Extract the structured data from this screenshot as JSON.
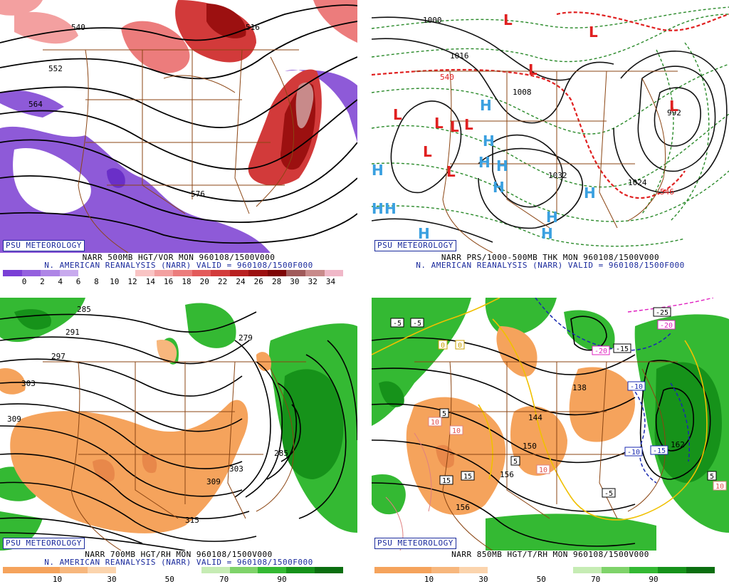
{
  "credit": "PSU METEOROLOGY",
  "panels": {
    "tl": {
      "title": "NARR 500MB HGT/VOR MON 960108/1500V000",
      "subtitle": "N. AMERICAN REANALYSIS (NARR) VALID = 960108/1500F000",
      "colorbar_labels": [
        "0",
        "2",
        "4",
        "6",
        "8",
        "10",
        "12",
        "14",
        "16",
        "18",
        "20",
        "22",
        "24",
        "26",
        "28",
        "30",
        "32",
        "34"
      ],
      "contour_labels": [
        "540",
        "552",
        "564",
        "576",
        "516"
      ],
      "colorbar_colors": [
        "#7a3fd6",
        "#9460de",
        "#ae85e6",
        "#c8aaee",
        "#ffffff",
        "#ffffff",
        "#ffffff",
        "#f9c4c4",
        "#f3a0a0",
        "#ec7c7c",
        "#e35a5a",
        "#d23a3a",
        "#b82020",
        "#9c1010",
        "#7e0606",
        "#a05a5a",
        "#c88a8a",
        "#f0b8c8"
      ]
    },
    "tr": {
      "title": "NARR PRS/1000-500MB THK MON 960108/1500V000",
      "subtitle": "N. AMERICAN REANALYSIS (NARR) VALID = 960108/1500F000",
      "contour_labels": [
        "1000",
        "1008",
        "1016",
        "1024",
        "1032",
        "992",
        "540",
        "546"
      ],
      "low_symbol": "L",
      "high_symbol": "H"
    },
    "bl": {
      "title": "NARR 700MB HGT/RH MON 960108/1500V000",
      "subtitle": "N. AMERICAN REANALYSIS (NARR) VALID = 960108/1500F000",
      "colorbar_labels": [
        "10",
        "30",
        "50",
        "70",
        "90"
      ],
      "contour_labels": [
        "285",
        "291",
        "297",
        "303",
        "309",
        "315",
        "279"
      ],
      "colorbar_colors": [
        "#f5a35c",
        "#f5a35c",
        "#f7b77d",
        "#fbd4ad",
        "#ffffff",
        "#ffffff",
        "#ffffff",
        "#c6ecb4",
        "#7fd36a",
        "#34b933",
        "#16921a",
        "#0b6e10"
      ]
    },
    "br": {
      "title": "NARR 850MB HGT/T/RH MON 960108/1500V000",
      "colorbar_labels": [
        "10",
        "30",
        "50",
        "70",
        "90"
      ],
      "temp_labels": [
        "-5",
        "-5",
        "-5",
        "5",
        "0",
        "0",
        "10",
        "10",
        "10",
        "15",
        "15",
        "-10",
        "-15",
        "-15",
        "-10",
        "-20",
        "-20",
        "-25",
        "5",
        "10",
        "5"
      ],
      "contour_labels": [
        "138",
        "144",
        "150",
        "156",
        "162"
      ],
      "colorbar_colors": [
        "#f5a35c",
        "#f5a35c",
        "#f7b77d",
        "#fbd4ad",
        "#ffffff",
        "#ffffff",
        "#ffffff",
        "#c6ecb4",
        "#7fd36a",
        "#34b933",
        "#16921a",
        "#0b6e10"
      ]
    }
  }
}
